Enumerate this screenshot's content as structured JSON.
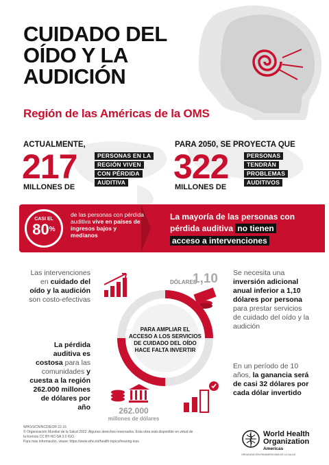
{
  "header": {
    "title_lines": [
      "CUIDADO DEL",
      "OÍDO Y LA",
      "AUDICIÓN"
    ],
    "subtitle": "Región de las Américas de la OMS"
  },
  "stats": {
    "left": {
      "label": "ACTUALMENTE,",
      "number": "217",
      "unit": "MILLONES DE",
      "tags": [
        "PERSONAS EN LA",
        "REGIÓN VIVEN",
        "CON PÉRDIDA",
        "AUDITIVA"
      ]
    },
    "right": {
      "label": "PARA 2050, SE PROYECTA QUE",
      "number": "322",
      "unit": "MILLONES DE",
      "tags": [
        "PERSONAS",
        "TENDRÁN",
        "PROBLEMAS",
        "AUDITIVOS"
      ]
    }
  },
  "band": {
    "circle_small": "CASI EL",
    "circle_pct": "80",
    "circle_pct_sign": "%",
    "left_text_1": "de las personas con pérdida auditiva ",
    "left_text_bold": "vive en",
    "left_text_2": " países de ingresos bajos y medianos",
    "right_line1": "La mayoría de las personas con",
    "right_line2": "pérdida auditiva",
    "right_hl1": "no tienen",
    "right_hl2": "acceso a intervenciones"
  },
  "lower": {
    "left1_a": "Las intervenciones en ",
    "left1_b": "cuidado del oído y la audición",
    "left1_c": " son costo-efectivas",
    "left2_a": "La pérdida auditiva es ",
    "left2_b": "costosa",
    "left2_c": " para las comunidades ",
    "left2_d": "y cuesta a la región 262.000 millones de dólares por año",
    "center_text": "PARA AMPLIAR EL ACCESO A LOS SERVICIOS DE CUIDADO DEL OÍDO HACE FALTA INVERTIR",
    "dolares_label": "DÓLARES",
    "dolares_num": "1,10",
    "bottom_num": "262.000",
    "bottom_unit": "millones de dólares",
    "right1_a": "Se necesita una ",
    "right1_b": "inversión adicional anual inferior a 1,10 dólares por persona",
    "right1_c": " para prestar servicios de cuidado del oído y la audición",
    "right2_a": "En un período de 10 años, ",
    "right2_b": "la ganancia",
    "right2_c": " será de casi 32 dólares por cada dólar invertido"
  },
  "footer": {
    "code": "WHO/UCN/NCD/EOR 22.16",
    "copyright": "© Organización Mundial de la Salud 2022. Algunos derechos reservados. Esta obra está disponible en virtud de la licencia CC BY-NC-SA 3.0 IGO.",
    "more_info": "Para más información, véase: https://www.who.int/health-topics/hearing-loss"
  },
  "who": {
    "name_line1": "World Health",
    "name_line2": "Organization",
    "region": "Americas",
    "small": "ORGANIZACIÓN PANAMERICANA DE LA SALUD"
  },
  "colors": {
    "accent_red": "#c8102e",
    "dark": "#1a1a1a"
  }
}
